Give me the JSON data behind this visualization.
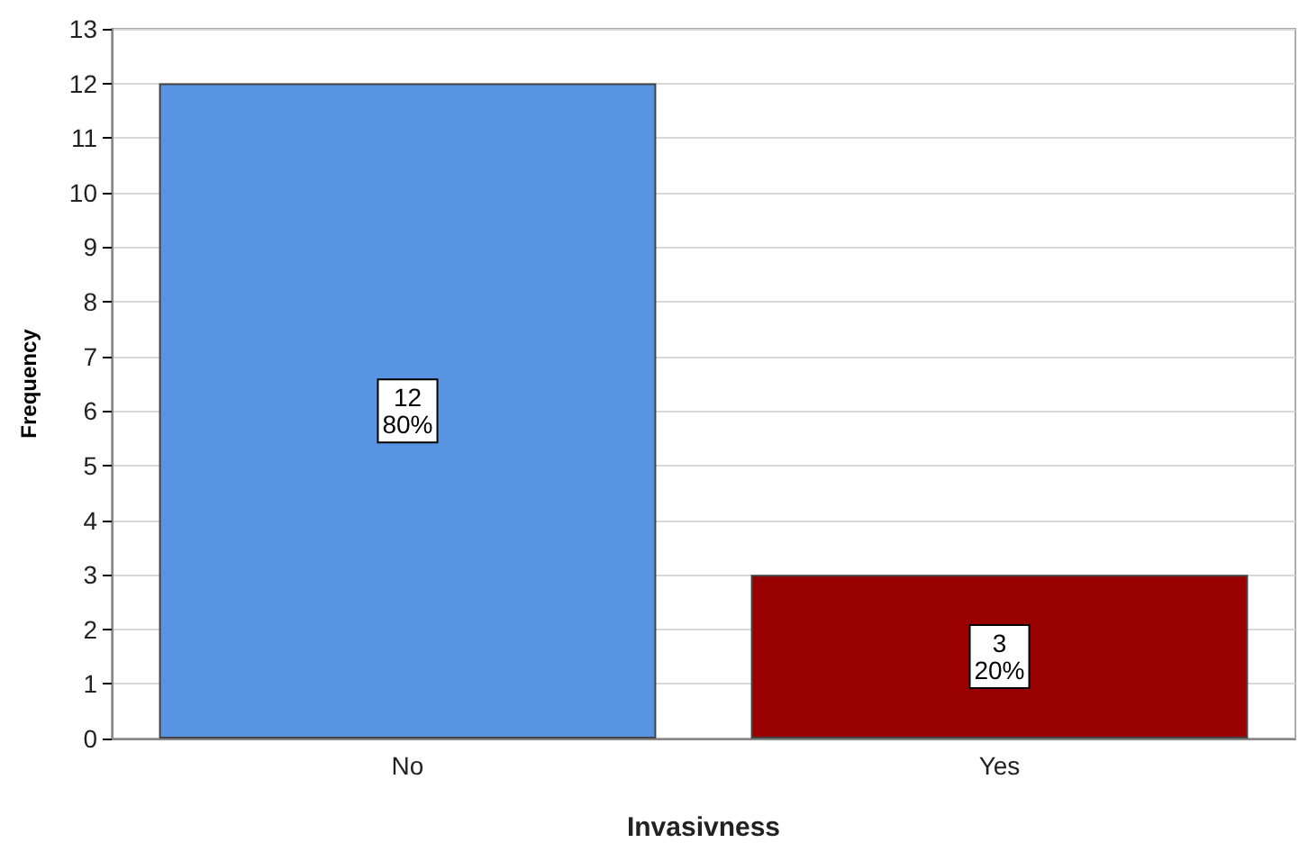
{
  "chart_data": {
    "type": "bar",
    "xlabel": "Invasivness",
    "ylabel": "Frequency",
    "categories": [
      "No",
      "Yes"
    ],
    "values": [
      12,
      3
    ],
    "colors": [
      "#5894e2",
      "#990000"
    ],
    "value_labels": [
      "12\n80%",
      "3\n20%"
    ],
    "ylim": [
      0,
      13
    ],
    "yticks": [
      0,
      1,
      2,
      3,
      4,
      5,
      6,
      7,
      8,
      9,
      10,
      11,
      12,
      13
    ],
    "grid": "y"
  }
}
